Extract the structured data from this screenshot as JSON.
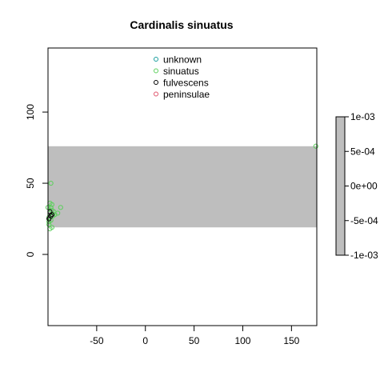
{
  "chart_data": {
    "type": "scatter",
    "title": "Cardinalis sinuatus",
    "xlabel": "",
    "ylabel": "",
    "xlim": [
      -100,
      176
    ],
    "ylim": [
      -50,
      145
    ],
    "x_ticks": [
      -50,
      0,
      50,
      100,
      150
    ],
    "y_ticks": [
      0,
      50,
      100
    ],
    "grid": false,
    "legend_position": "top-center",
    "band": {
      "ymin": 19,
      "ymax": 76,
      "color": "#bebebe"
    },
    "series": [
      {
        "name": "unknown",
        "color": "#1a9e9e",
        "points": []
      },
      {
        "name": "sinuatus",
        "color": "#5cd05c",
        "points": [
          [
            -98,
            36
          ],
          [
            -97,
            33
          ],
          [
            -96,
            31
          ],
          [
            -98,
            29
          ],
          [
            -95,
            27
          ],
          [
            -97,
            24
          ],
          [
            -99,
            21
          ],
          [
            -96,
            19
          ],
          [
            -98,
            18
          ],
          [
            -94,
            30
          ],
          [
            -93,
            28
          ],
          [
            -90,
            29
          ],
          [
            -87,
            33
          ],
          [
            -99,
            26
          ],
          [
            -100,
            33
          ],
          [
            -97,
            50
          ],
          [
            -96,
            35
          ],
          [
            -99,
            23
          ],
          [
            175,
            76
          ]
        ]
      },
      {
        "name": "fulvescens",
        "color": "#000000",
        "points": [
          [
            -98,
            30
          ],
          [
            -96,
            28
          ],
          [
            -99,
            25
          ],
          [
            -97,
            27
          ]
        ]
      },
      {
        "name": "peninsulae",
        "color": "#df536b",
        "points": []
      }
    ],
    "colorbar": {
      "labels": [
        "1e-03",
        "5e-04",
        "0e+00",
        "-5e-04",
        "-1e-03"
      ],
      "color": "#bebebe"
    }
  }
}
